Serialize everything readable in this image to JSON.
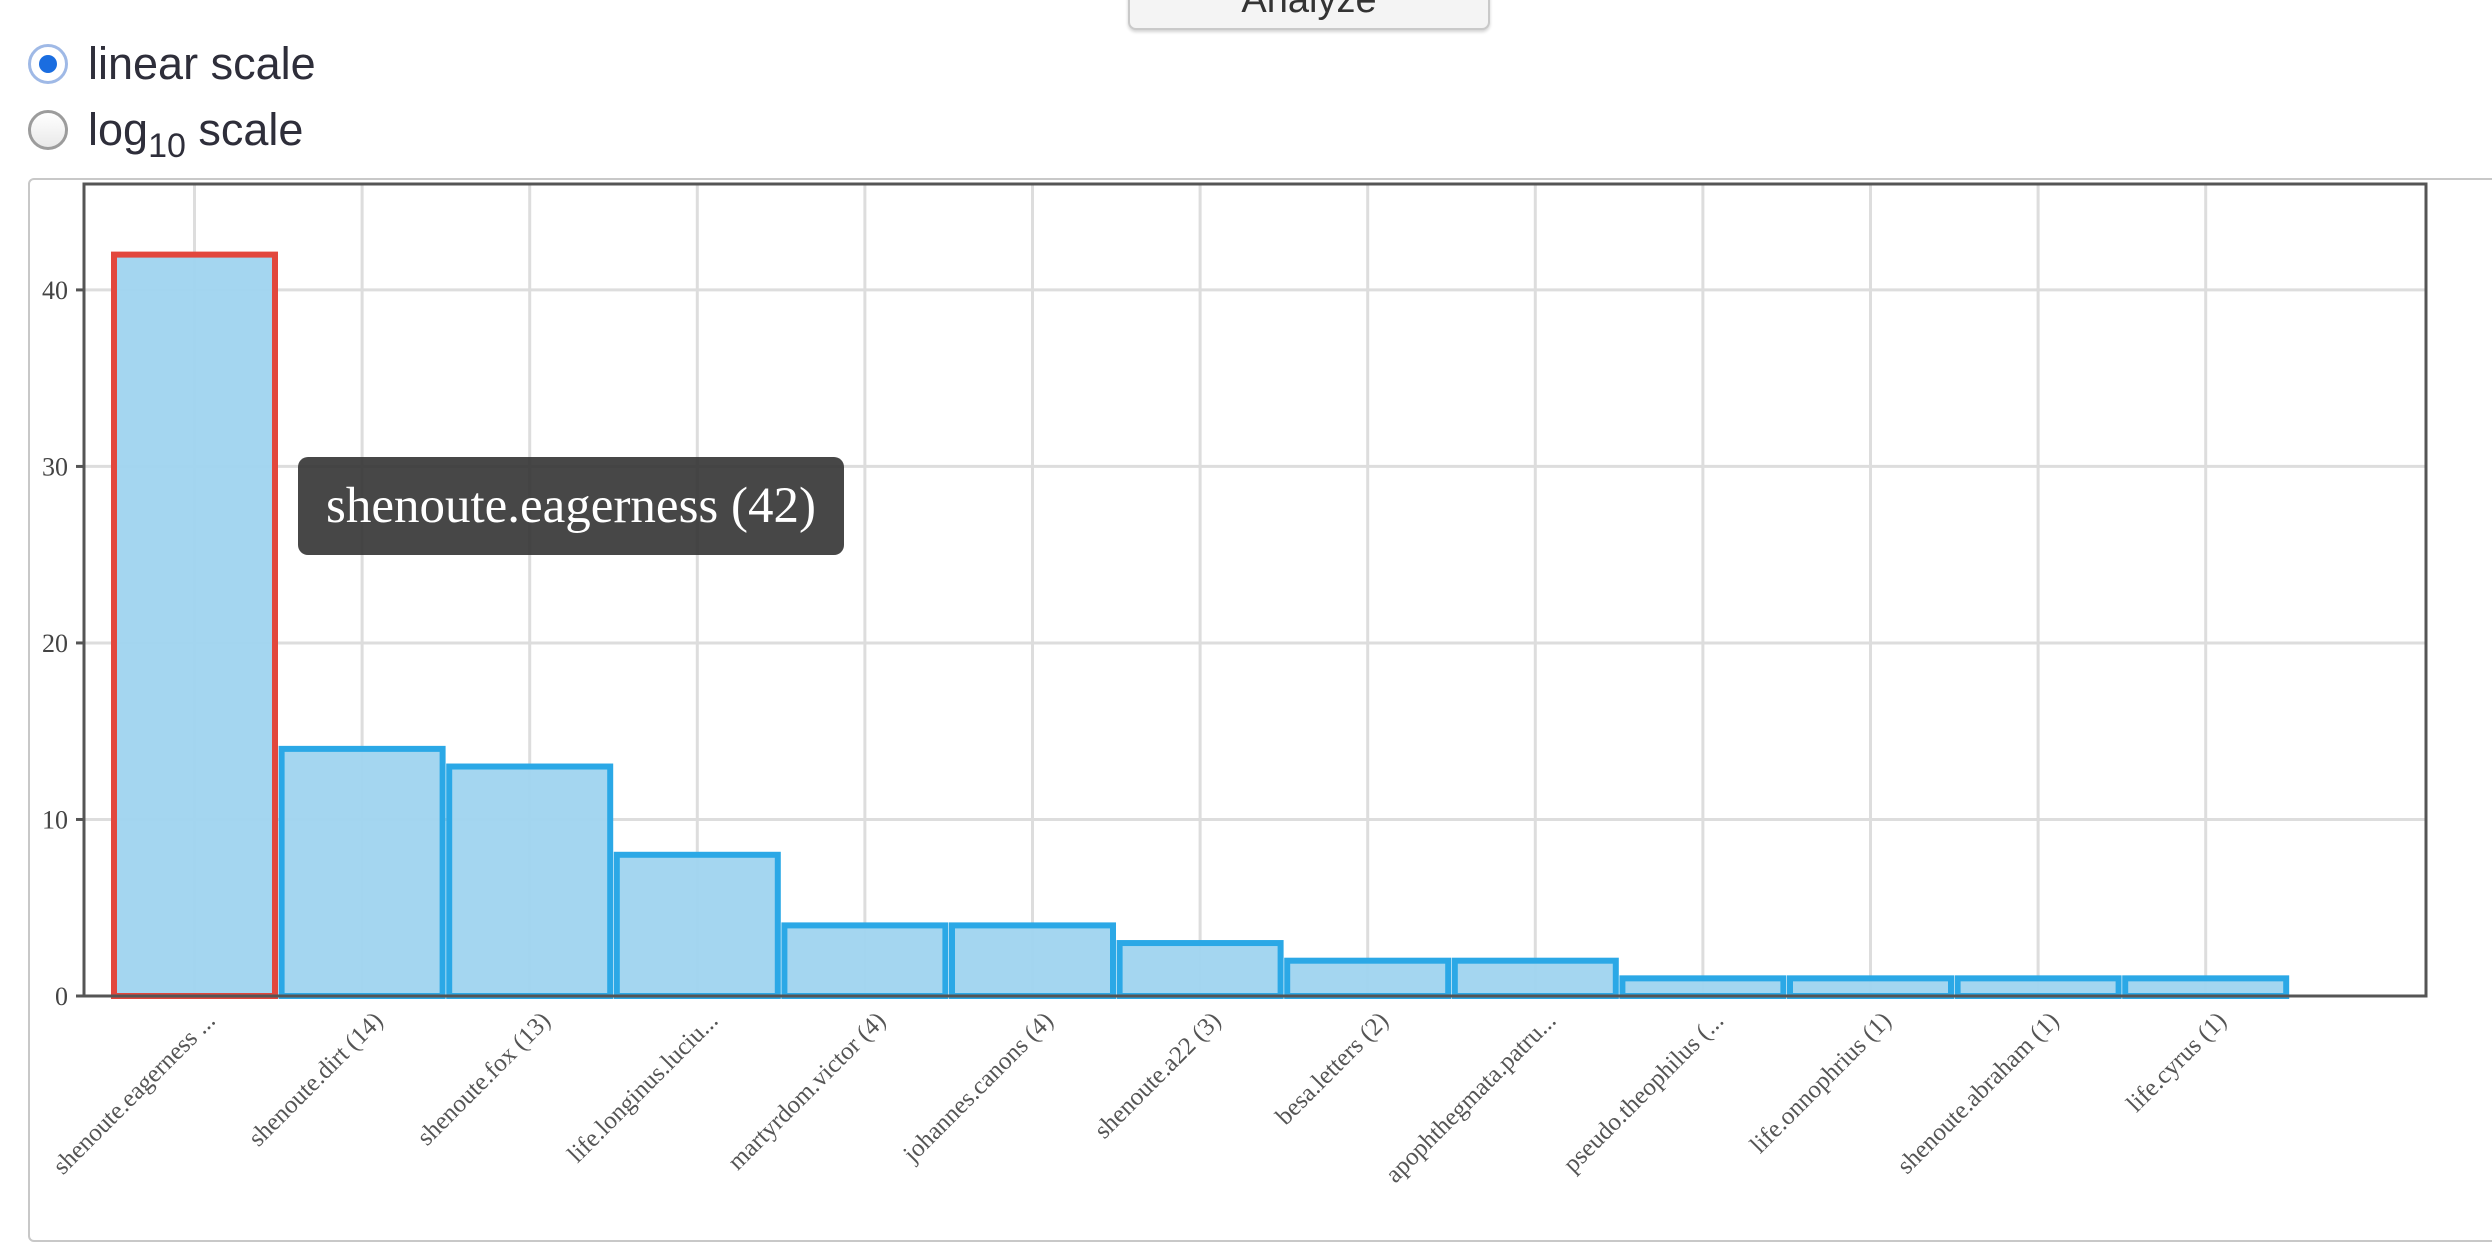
{
  "top_button": {
    "label": "Analyze"
  },
  "scale_options": [
    {
      "label": "linear scale",
      "checked": true
    },
    {
      "label_main": "log",
      "label_sub": "10",
      "label_suffix": " scale",
      "checked": false
    }
  ],
  "tooltip": {
    "text": "shenoute.eagerness (42)"
  },
  "colors": {
    "bar_fill": "#9fd4ef",
    "bar_stroke": "#2ba8e6",
    "highlight_stroke": "#e2473d",
    "grid": "#dddddd",
    "frame": "#555555"
  },
  "chart_data": {
    "type": "bar",
    "highlighted_index": 0,
    "categories": [
      "shenoute.eagerness ...",
      "shenoute.dirt (14)",
      "shenoute.fox (13)",
      "life.longinus.luciu...",
      "martyrdom.victor (4)",
      "johannes.canons (4)",
      "shenoute.a22 (3)",
      "besa.letters (2)",
      "apophthegmata.patru...",
      "pseudo.theophilus (...",
      "life.onnophrius (1)",
      "shenoute.abraham (1)",
      "life.cyrus (1)"
    ],
    "values": [
      42,
      14,
      13,
      8,
      4,
      4,
      3,
      2,
      2,
      1,
      1,
      1,
      1
    ],
    "yticks": [
      "0",
      "10",
      "20",
      "30",
      "40"
    ],
    "ylim": [
      0,
      46
    ],
    "scale": "linear",
    "grid": true,
    "title": "",
    "xlabel": "",
    "ylabel": ""
  }
}
